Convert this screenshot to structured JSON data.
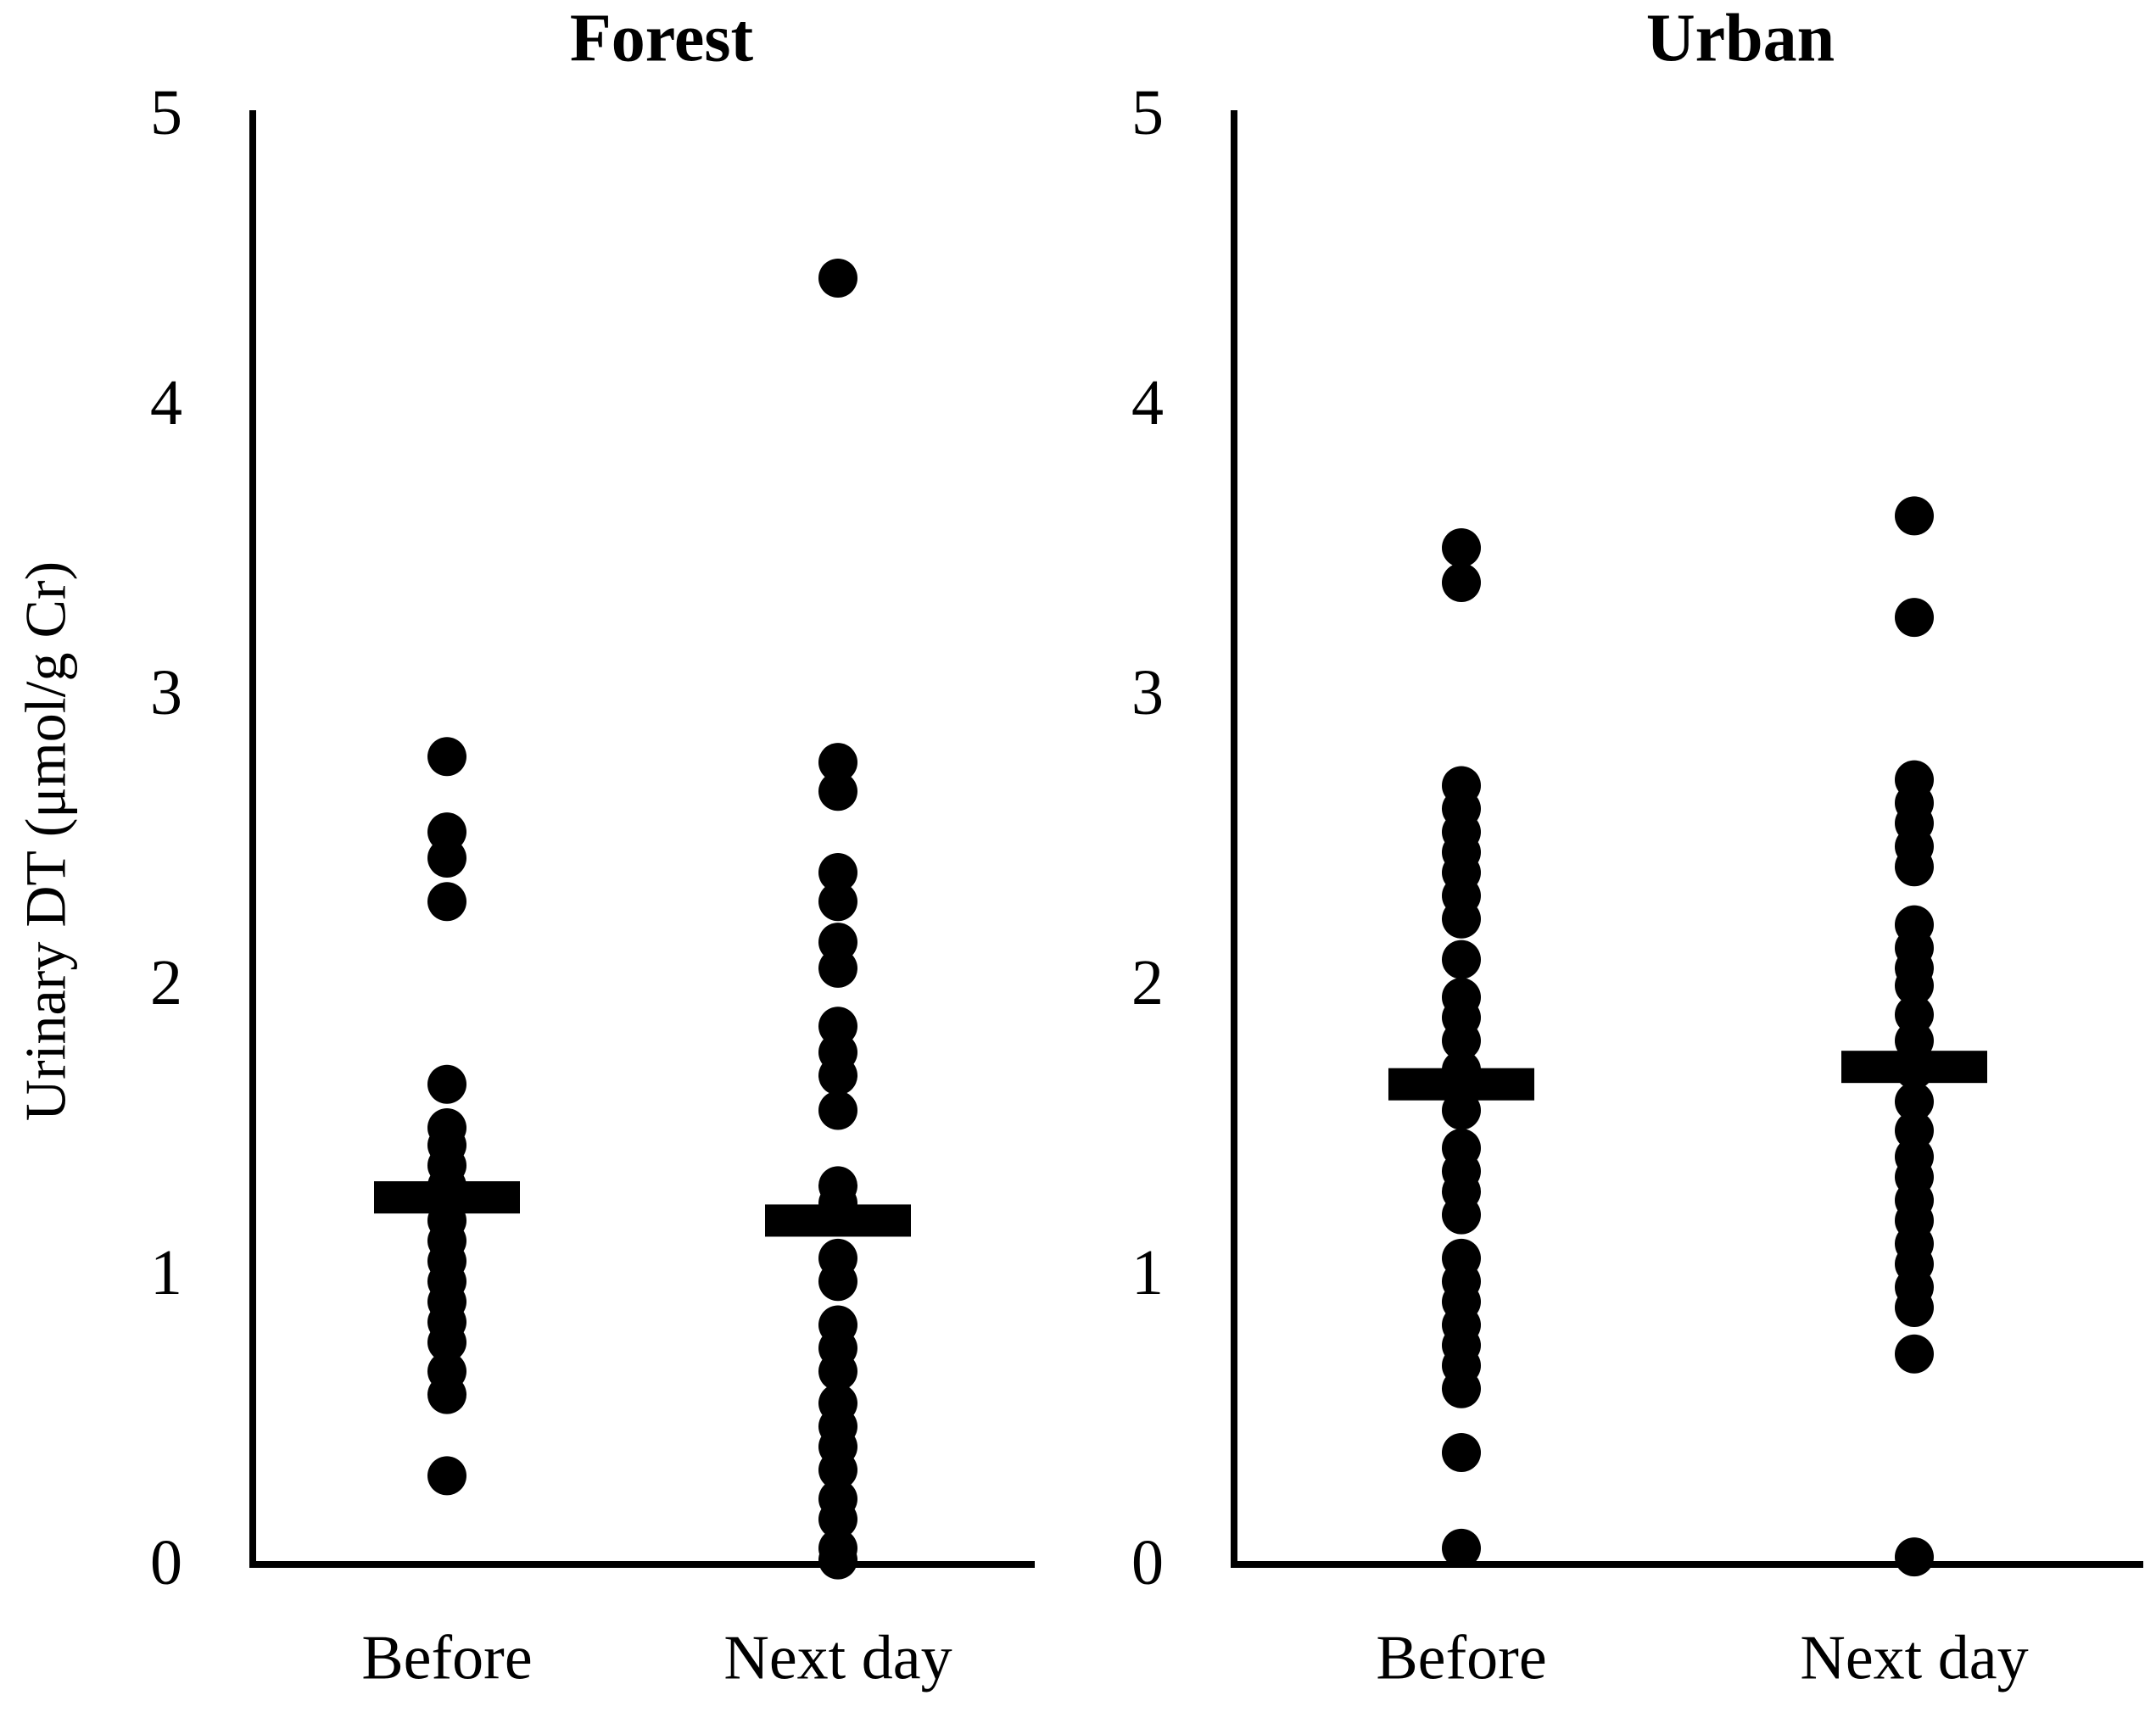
{
  "figure": {
    "y_axis_label": "Urinary DT (μmol/g Cr)",
    "background": "#ffffff",
    "ink_color": "#000000"
  },
  "chart_data": [
    {
      "type": "scatter",
      "title": "Forest",
      "categories": [
        "Before",
        "Next day"
      ],
      "ylabel": "Urinary DT (μmol/g Cr)",
      "ylim": [
        0,
        5
      ],
      "yticks": [
        5,
        4,
        3,
        2,
        1,
        0
      ],
      "grid": false,
      "marker": "filled-black-circle",
      "series": [
        {
          "name": "Before",
          "mean": 1.26,
          "values": [
            2.78,
            2.52,
            2.43,
            2.28,
            1.65,
            1.5,
            1.44,
            1.37,
            1.3,
            1.24,
            1.18,
            1.11,
            1.04,
            0.97,
            0.9,
            0.83,
            0.76,
            0.66,
            0.58,
            0.3
          ]
        },
        {
          "name": "Next day",
          "mean": 1.18,
          "values": [
            4.43,
            2.76,
            2.66,
            2.38,
            2.28,
            2.14,
            2.05,
            1.85,
            1.76,
            1.68,
            1.56,
            1.3,
            1.24,
            1.05,
            0.97,
            0.82,
            0.74,
            0.66,
            0.55,
            0.47,
            0.4,
            0.32,
            0.22,
            0.15,
            0.05,
            0.01
          ]
        }
      ]
    },
    {
      "type": "scatter",
      "title": "Urban",
      "categories": [
        "Before",
        "Next day"
      ],
      "ylabel": "Urinary DT (μmol/g Cr)",
      "ylim": [
        0,
        5
      ],
      "yticks": [
        5,
        4,
        3,
        2,
        1,
        0
      ],
      "grid": false,
      "marker": "filled-black-circle",
      "series": [
        {
          "name": "Before",
          "mean": 1.65,
          "values": [
            3.5,
            3.38,
            2.68,
            2.6,
            2.52,
            2.45,
            2.38,
            2.3,
            2.22,
            2.08,
            1.95,
            1.88,
            1.8,
            1.7,
            1.65,
            1.56,
            1.43,
            1.35,
            1.28,
            1.2,
            1.05,
            0.97,
            0.9,
            0.82,
            0.75,
            0.68,
            0.6,
            0.38,
            0.05
          ]
        },
        {
          "name": "Next day",
          "mean": 1.71,
          "values": [
            3.61,
            3.26,
            2.7,
            2.62,
            2.55,
            2.47,
            2.4,
            2.2,
            2.12,
            2.05,
            1.99,
            1.89,
            1.8,
            1.7,
            1.59,
            1.49,
            1.4,
            1.33,
            1.25,
            1.18,
            1.1,
            1.03,
            0.95,
            0.88,
            0.72,
            0.02
          ]
        }
      ]
    }
  ]
}
